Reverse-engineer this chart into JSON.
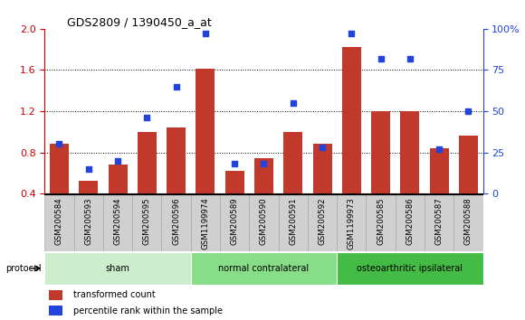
{
  "title": "GDS2809 / 1390450_a_at",
  "samples": [
    "GSM200584",
    "GSM200593",
    "GSM200594",
    "GSM200595",
    "GSM200596",
    "GSM1199974",
    "GSM200589",
    "GSM200590",
    "GSM200591",
    "GSM200592",
    "GSM1199973",
    "GSM200585",
    "GSM200586",
    "GSM200587",
    "GSM200588"
  ],
  "bar_values": [
    0.88,
    0.52,
    0.68,
    1.0,
    1.04,
    1.61,
    0.62,
    0.74,
    1.0,
    0.88,
    1.82,
    1.2,
    1.2,
    0.84,
    0.96
  ],
  "dot_values_pct": [
    30,
    15,
    20,
    46,
    65,
    97,
    18,
    18,
    55,
    28,
    97,
    82,
    82,
    27,
    50
  ],
  "ylim_left": [
    0.4,
    2.0
  ],
  "ylim_right": [
    0,
    100
  ],
  "yticks_left": [
    0.4,
    0.8,
    1.2,
    1.6,
    2.0
  ],
  "yticks_right": [
    0,
    25,
    50,
    75,
    100
  ],
  "bar_color": "#C0392B",
  "dot_color": "#2244DD",
  "cell_color": "#D0D0D0",
  "cell_border_color": "#AAAAAA",
  "protocol_groups": [
    {
      "label": "sham",
      "start": 0,
      "end": 4,
      "color": "#CCEECC"
    },
    {
      "label": "normal contralateral",
      "start": 5,
      "end": 9,
      "color": "#88DD88"
    },
    {
      "label": "osteoarthritic ipsilateral",
      "start": 10,
      "end": 14,
      "color": "#44BB44"
    }
  ],
  "legend_bar_label": "transformed count",
  "legend_dot_label": "percentile rank within the sample",
  "protocol_label": "protocol"
}
